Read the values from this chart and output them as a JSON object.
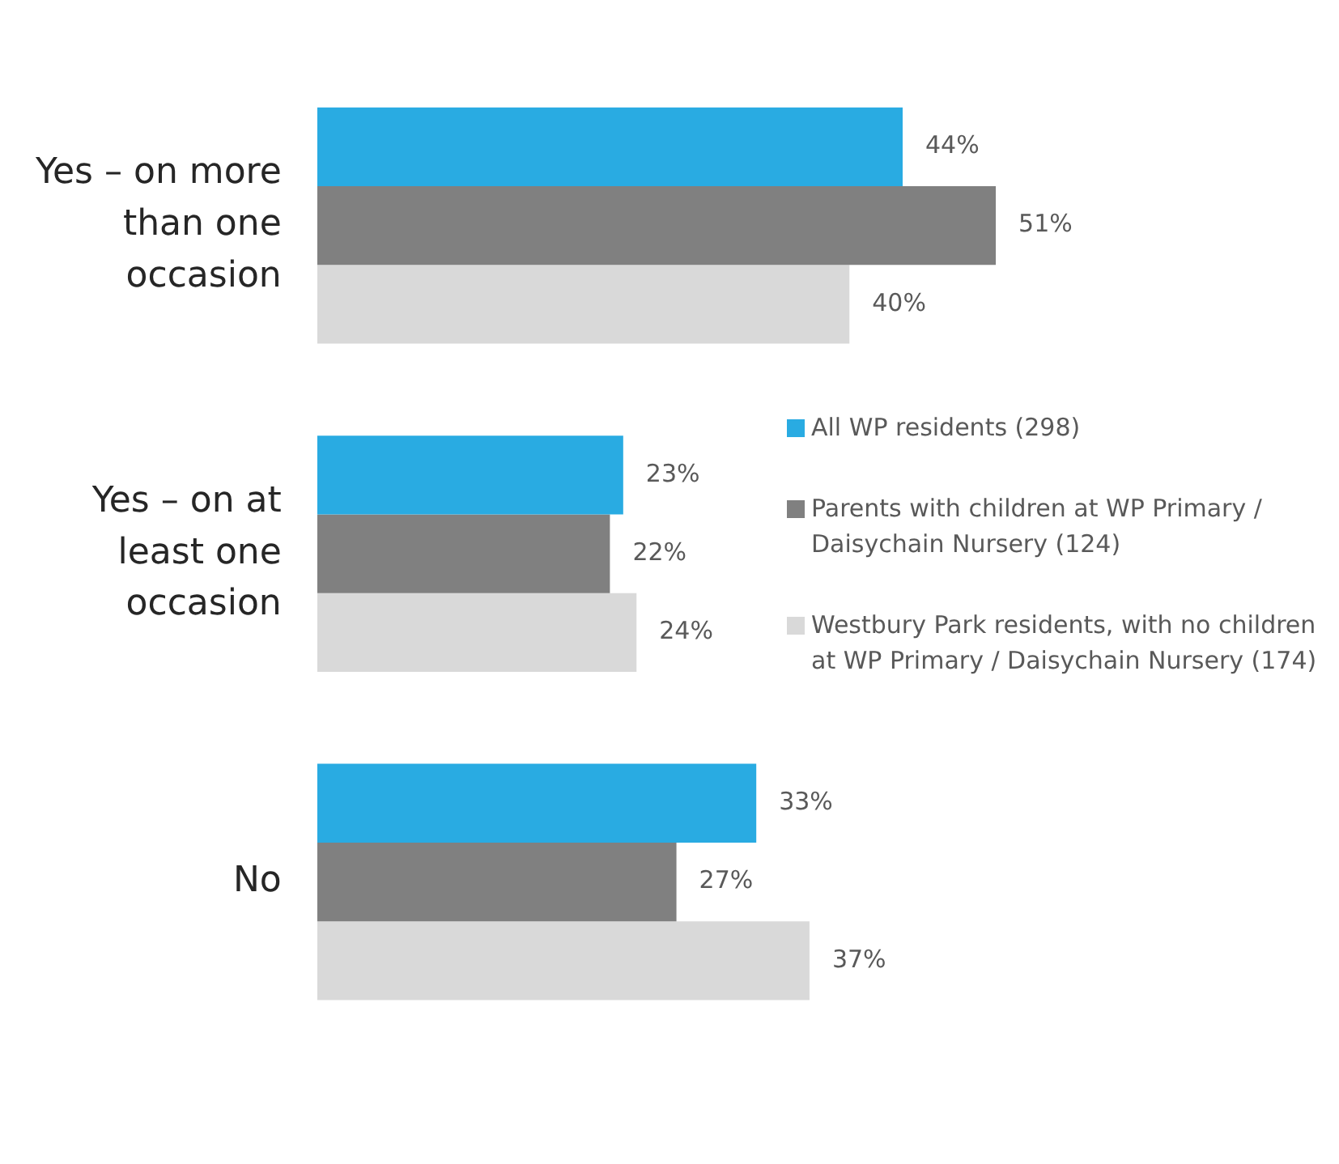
{
  "chart_data": {
    "type": "bar",
    "orientation": "horizontal",
    "categories": [
      "Yes – on more than one occasion",
      "Yes – on at least one occasion",
      "No"
    ],
    "series": [
      {
        "name": "All WP residents (298)",
        "color": "#29abe2",
        "values": [
          44,
          23,
          33
        ],
        "value_labels": [
          "44%",
          "23%",
          "33%"
        ]
      },
      {
        "name": "Parents with children at WP Primary / Daisychain Nursery (124)",
        "color": "#808080",
        "values": [
          51,
          22,
          27
        ],
        "value_labels": [
          "51%",
          "22%",
          "27%"
        ]
      },
      {
        "name": "Westbury Park residents, with no children at WP Primary / Daisychain Nursery (174)",
        "color": "#d9d9d9",
        "values": [
          40,
          24,
          37
        ],
        "value_labels": [
          "40%",
          "24%",
          "37%"
        ]
      }
    ],
    "grid": false,
    "legend": "right",
    "tick_labels": "y"
  }
}
